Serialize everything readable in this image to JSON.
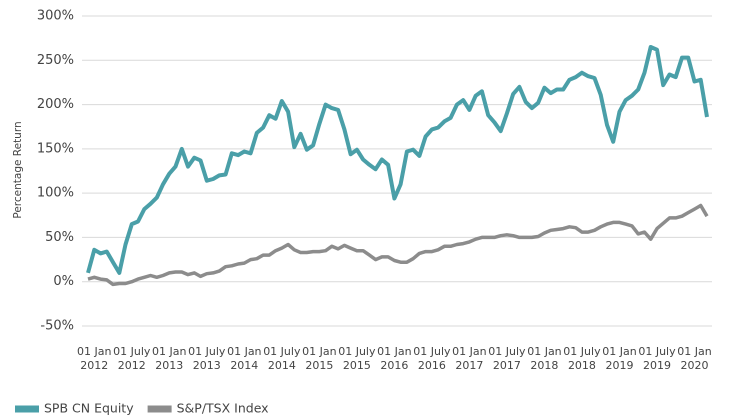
{
  "chart_data": {
    "type": "line",
    "y_label": "Percentage Return",
    "x": [
      "2011-12",
      "2012-01",
      "2012-02",
      "2012-03",
      "2012-04",
      "2012-05",
      "2012-06",
      "2012-07",
      "2012-08",
      "2012-09",
      "2012-10",
      "2012-11",
      "2012-12",
      "2013-01",
      "2013-02",
      "2013-03",
      "2013-04",
      "2013-05",
      "2013-06",
      "2013-07",
      "2013-08",
      "2013-09",
      "2013-10",
      "2013-11",
      "2013-12",
      "2014-01",
      "2014-02",
      "2014-03",
      "2014-04",
      "2014-05",
      "2014-06",
      "2014-07",
      "2014-08",
      "2014-09",
      "2014-10",
      "2014-11",
      "2014-12",
      "2015-01",
      "2015-02",
      "2015-03",
      "2015-04",
      "2015-05",
      "2015-06",
      "2015-07",
      "2015-08",
      "2015-09",
      "2015-10",
      "2015-11",
      "2015-12",
      "2016-01",
      "2016-02",
      "2016-03",
      "2016-04",
      "2016-05",
      "2016-06",
      "2016-07",
      "2016-08",
      "2016-09",
      "2016-10",
      "2016-11",
      "2016-12",
      "2017-01",
      "2017-02",
      "2017-03",
      "2017-04",
      "2017-05",
      "2017-06",
      "2017-07",
      "2017-08",
      "2017-09",
      "2017-10",
      "2017-11",
      "2017-12",
      "2018-01",
      "2018-02",
      "2018-03",
      "2018-04",
      "2018-05",
      "2018-06",
      "2018-07",
      "2018-08",
      "2018-09",
      "2018-10",
      "2018-11",
      "2018-12",
      "2019-01",
      "2019-02",
      "2019-03",
      "2019-04",
      "2019-05",
      "2019-06",
      "2019-07",
      "2019-08",
      "2019-09",
      "2019-10",
      "2019-11",
      "2019-12",
      "2020-01",
      "2020-02",
      "2020-03"
    ],
    "series": [
      {
        "name": "SPB CN Equity",
        "color": "#4a9fa8",
        "values": [
          10,
          36,
          32,
          34,
          22,
          10,
          42,
          65,
          68,
          82,
          88,
          95,
          110,
          122,
          130,
          150,
          130,
          140,
          137,
          114,
          116,
          120,
          121,
          145,
          143,
          147,
          145,
          168,
          174,
          188,
          184,
          204,
          192,
          152,
          167,
          149,
          154,
          178,
          200,
          196,
          194,
          172,
          144,
          149,
          138,
          132,
          127,
          138,
          132,
          94,
          110,
          147,
          149,
          142,
          164,
          172,
          174,
          181,
          185,
          200,
          205,
          194,
          210,
          215,
          188,
          180,
          170,
          190,
          212,
          220,
          203,
          196,
          202,
          219,
          213,
          217,
          217,
          228,
          231,
          236,
          232,
          230,
          211,
          177,
          158,
          192,
          205,
          210,
          217,
          236,
          265,
          262,
          222,
          234,
          231,
          253,
          253,
          226,
          228,
          186
        ]
      },
      {
        "name": "S&P/TSX Index",
        "color": "#8c8c8c",
        "values": [
          3,
          5,
          3,
          2,
          -3,
          -2,
          -2,
          0,
          3,
          5,
          7,
          5,
          7,
          10,
          11,
          11,
          8,
          10,
          6,
          9,
          10,
          12,
          17,
          18,
          20,
          21,
          25,
          26,
          30,
          30,
          35,
          38,
          42,
          36,
          33,
          33,
          34,
          34,
          35,
          40,
          37,
          41,
          38,
          35,
          35,
          30,
          25,
          28,
          28,
          24,
          22,
          22,
          26,
          32,
          34,
          34,
          36,
          40,
          40,
          42,
          43,
          45,
          48,
          50,
          50,
          50,
          52,
          53,
          52,
          50,
          50,
          50,
          51,
          55,
          58,
          59,
          60,
          62,
          61,
          56,
          56,
          58,
          62,
          65,
          67,
          67,
          65,
          63,
          54,
          56,
          48,
          60,
          66,
          72,
          72,
          74,
          78,
          82,
          86,
          74
        ]
      }
    ],
    "xlim": [
      "2011-12",
      "2020-03"
    ],
    "xticks": [
      {
        "value": "2012-01",
        "label": [
          "01 Jan",
          "2012"
        ]
      },
      {
        "value": "2012-07",
        "label": [
          "01 July",
          "2012"
        ]
      },
      {
        "value": "2013-01",
        "label": [
          "01 Jan",
          "2013"
        ]
      },
      {
        "value": "2013-07",
        "label": [
          "01 July",
          "2013"
        ]
      },
      {
        "value": "2014-01",
        "label": [
          "01 Jan",
          "2014"
        ]
      },
      {
        "value": "2014-07",
        "label": [
          "01 July",
          "2014"
        ]
      },
      {
        "value": "2015-01",
        "label": [
          "01 Jan",
          "2015"
        ]
      },
      {
        "value": "2015-07",
        "label": [
          "01 July",
          "2015"
        ]
      },
      {
        "value": "2016-01",
        "label": [
          "01 Jan",
          "2016"
        ]
      },
      {
        "value": "2016-07",
        "label": [
          "01 July",
          "2016"
        ]
      },
      {
        "value": "2017-01",
        "label": [
          "01 Jan",
          "2017"
        ]
      },
      {
        "value": "2017-07",
        "label": [
          "01 July",
          "2017"
        ]
      },
      {
        "value": "2018-01",
        "label": [
          "01 Jan",
          "2018"
        ]
      },
      {
        "value": "2018-07",
        "label": [
          "01 July",
          "2018"
        ]
      },
      {
        "value": "2019-01",
        "label": [
          "01 Jan",
          "2019"
        ]
      },
      {
        "value": "2019-07",
        "label": [
          "01 July",
          "2019"
        ]
      },
      {
        "value": "2020-01",
        "label": [
          "01 Jan",
          "2020"
        ]
      }
    ],
    "ylim": [
      -50,
      300
    ],
    "yticks": [
      {
        "value": -50,
        "label": "-50%"
      },
      {
        "value": 0,
        "label": "0%"
      },
      {
        "value": 50,
        "label": "50%"
      },
      {
        "value": 100,
        "label": "100%"
      },
      {
        "value": 150,
        "label": "150%"
      },
      {
        "value": 200,
        "label": "200%"
      },
      {
        "value": 250,
        "label": "250%"
      },
      {
        "value": 300,
        "label": "300%"
      }
    ],
    "grid": true,
    "legend": "bottom-left"
  }
}
